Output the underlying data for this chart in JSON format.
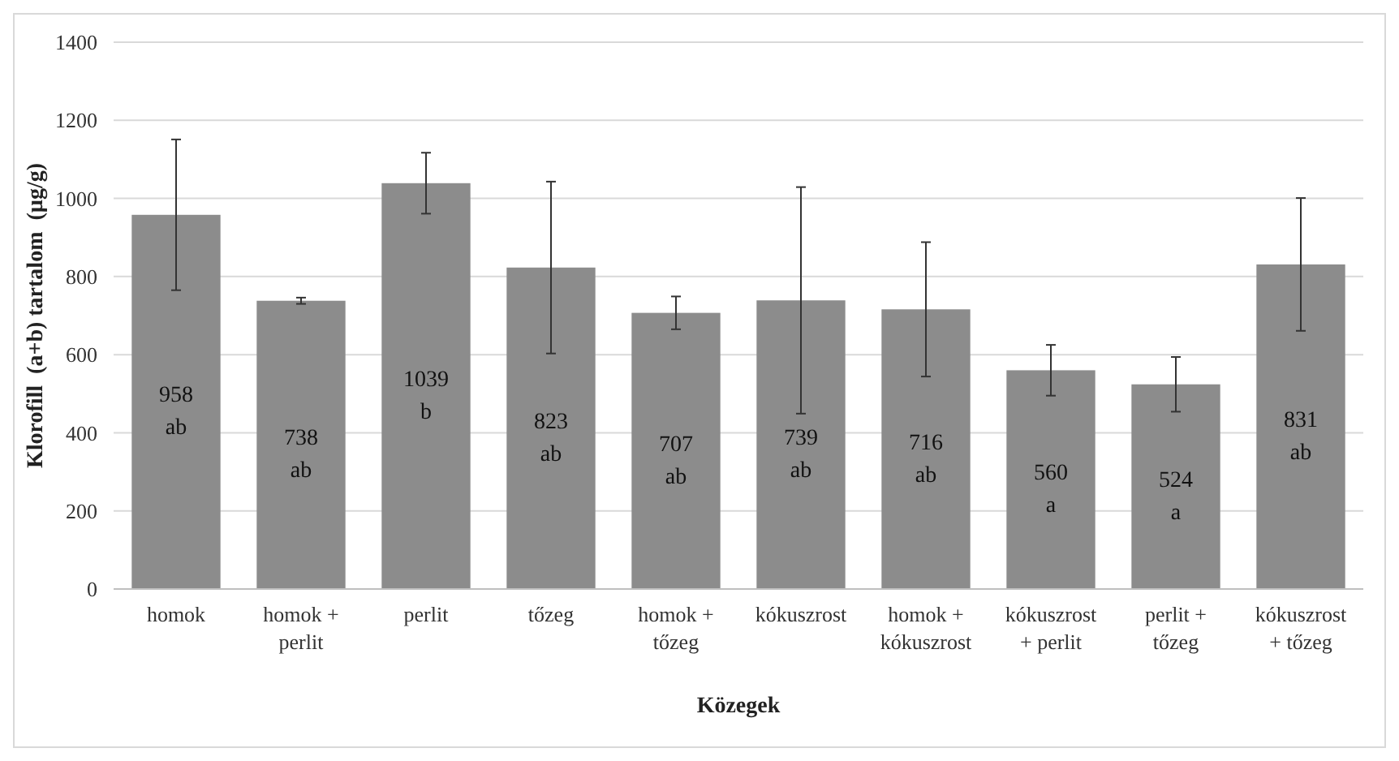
{
  "chart_data": {
    "type": "bar",
    "xlabel": "Közegek",
    "ylabel": "Klorofill  (a+b) tartalom  (µg/g)",
    "categories": [
      "homok",
      "homok +\nperlit",
      "perlit",
      "tőzeg",
      "homok +\ntőzeg",
      "kókuszrost",
      "homok +\nkókuszrost",
      "kókuszrost\n+ perlit",
      "perlit +\ntőzeg",
      "kókuszrost\n+ tőzeg"
    ],
    "values": [
      958,
      738,
      1039,
      823,
      707,
      739,
      716,
      560,
      524,
      831
    ],
    "errors": [
      193,
      8,
      78,
      220,
      42,
      290,
      172,
      65,
      70,
      170
    ],
    "value_labels": [
      "958\nab",
      "738\nab",
      "1039\nb",
      "823\nab",
      "707\nab",
      "739\nab",
      "716\nab",
      "560\na",
      "524\na",
      "831\nab"
    ],
    "color": "#8c8c8c",
    "ylim": [
      0,
      1400
    ],
    "yticks": [
      0,
      200,
      400,
      600,
      800,
      1000,
      1200,
      1400
    ],
    "grid": "y"
  }
}
